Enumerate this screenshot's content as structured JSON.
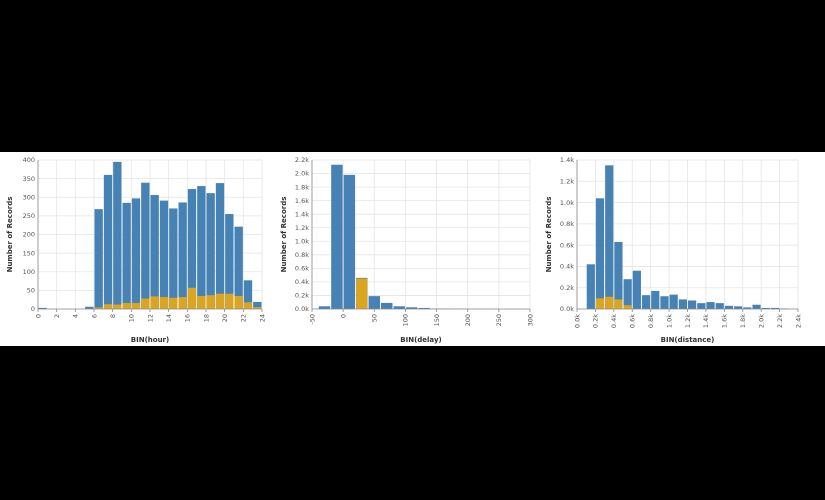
{
  "colors": {
    "background": "#000000",
    "series_total": "#4682b4",
    "series_highlight": "#daa520",
    "grid": "#e5e5e5",
    "axis": "#888888"
  },
  "chart_data": [
    {
      "type": "bar",
      "xlabel": "BIN(hour)",
      "ylabel": "Number of Records",
      "xlim": [
        0,
        24
      ],
      "ylim": [
        0,
        400
      ],
      "grid": true,
      "x_ticks": [
        "0",
        "2",
        "4",
        "6",
        "8",
        "10",
        "12",
        "14",
        "16",
        "18",
        "20",
        "22",
        "24"
      ],
      "y_ticks": [
        "0",
        "50",
        "100",
        "150",
        "200",
        "250",
        "300",
        "350",
        "400"
      ],
      "bin_width": 1,
      "bins": [
        0,
        1,
        2,
        3,
        4,
        5,
        6,
        7,
        8,
        9,
        10,
        11,
        12,
        13,
        14,
        15,
        16,
        17,
        18,
        19,
        20,
        21,
        22,
        23
      ],
      "series": [
        {
          "values": [
            3,
            0,
            0,
            0,
            0,
            6,
            268,
            360,
            395,
            285,
            297,
            339,
            306,
            291,
            270,
            286,
            322,
            330,
            311,
            338,
            255,
            221,
            77,
            19
          ]
        },
        {
          "values": [
            0,
            0,
            0,
            0,
            0,
            0,
            4,
            13,
            12,
            16,
            16,
            28,
            34,
            32,
            30,
            32,
            57,
            35,
            37,
            41,
            41,
            35,
            18,
            5
          ]
        }
      ]
    },
    {
      "type": "bar",
      "xlabel": "BIN(delay)",
      "ylabel": "Number of Records",
      "xlim": [
        -50,
        300
      ],
      "ylim": [
        0,
        2200
      ],
      "grid": true,
      "x_ticks": [
        "-50",
        "0",
        "50",
        "100",
        "150",
        "200",
        "250",
        "300"
      ],
      "y_ticks": [
        "0.0k",
        "0.2k",
        "0.4k",
        "0.6k",
        "0.8k",
        "1.0k",
        "1.2k",
        "1.4k",
        "1.6k",
        "1.8k",
        "2.0k",
        "2.2k"
      ],
      "bin_width": 20,
      "bins": [
        -40,
        -20,
        0,
        20,
        40,
        60,
        80,
        100,
        120,
        140,
        160,
        180,
        200,
        220,
        240,
        260,
        280
      ],
      "series": [
        {
          "values": [
            40,
            2130,
            1980,
            460,
            190,
            90,
            40,
            25,
            15,
            6,
            3,
            2,
            1,
            1,
            0,
            0,
            0
          ]
        },
        {
          "values": [
            0,
            0,
            0,
            450,
            0,
            0,
            0,
            0,
            0,
            0,
            0,
            0,
            0,
            0,
            0,
            0,
            0
          ]
        }
      ]
    },
    {
      "type": "bar",
      "xlabel": "BIN(distance)",
      "ylabel": "Number of Records",
      "xlim": [
        0,
        2400
      ],
      "ylim": [
        0,
        1400
      ],
      "grid": true,
      "x_ticks": [
        "0.0k",
        "0.2k",
        "0.4k",
        "0.6k",
        "0.8k",
        "1.0k",
        "1.2k",
        "1.4k",
        "1.6k",
        "1.8k",
        "2.0k",
        "2.2k",
        "2.4k"
      ],
      "y_ticks": [
        "0.0k",
        "0.2k",
        "0.4k",
        "0.6k",
        "0.8k",
        "1.0k",
        "1.2k",
        "1.4k"
      ],
      "bin_width": 100,
      "bins": [
        100,
        200,
        300,
        400,
        500,
        600,
        700,
        800,
        900,
        1000,
        1100,
        1200,
        1300,
        1400,
        1500,
        1600,
        1700,
        1800,
        1900,
        2000,
        2100,
        2200
      ],
      "series": [
        {
          "values": [
            420,
            1040,
            1350,
            630,
            280,
            360,
            130,
            170,
            120,
            135,
            90,
            80,
            55,
            65,
            55,
            30,
            25,
            15,
            40,
            10,
            10,
            5
          ]
        },
        {
          "values": [
            0,
            100,
            115,
            90,
            35,
            0,
            0,
            0,
            0,
            0,
            0,
            0,
            0,
            0,
            0,
            0,
            0,
            0,
            0,
            0,
            0,
            0
          ]
        }
      ]
    }
  ]
}
